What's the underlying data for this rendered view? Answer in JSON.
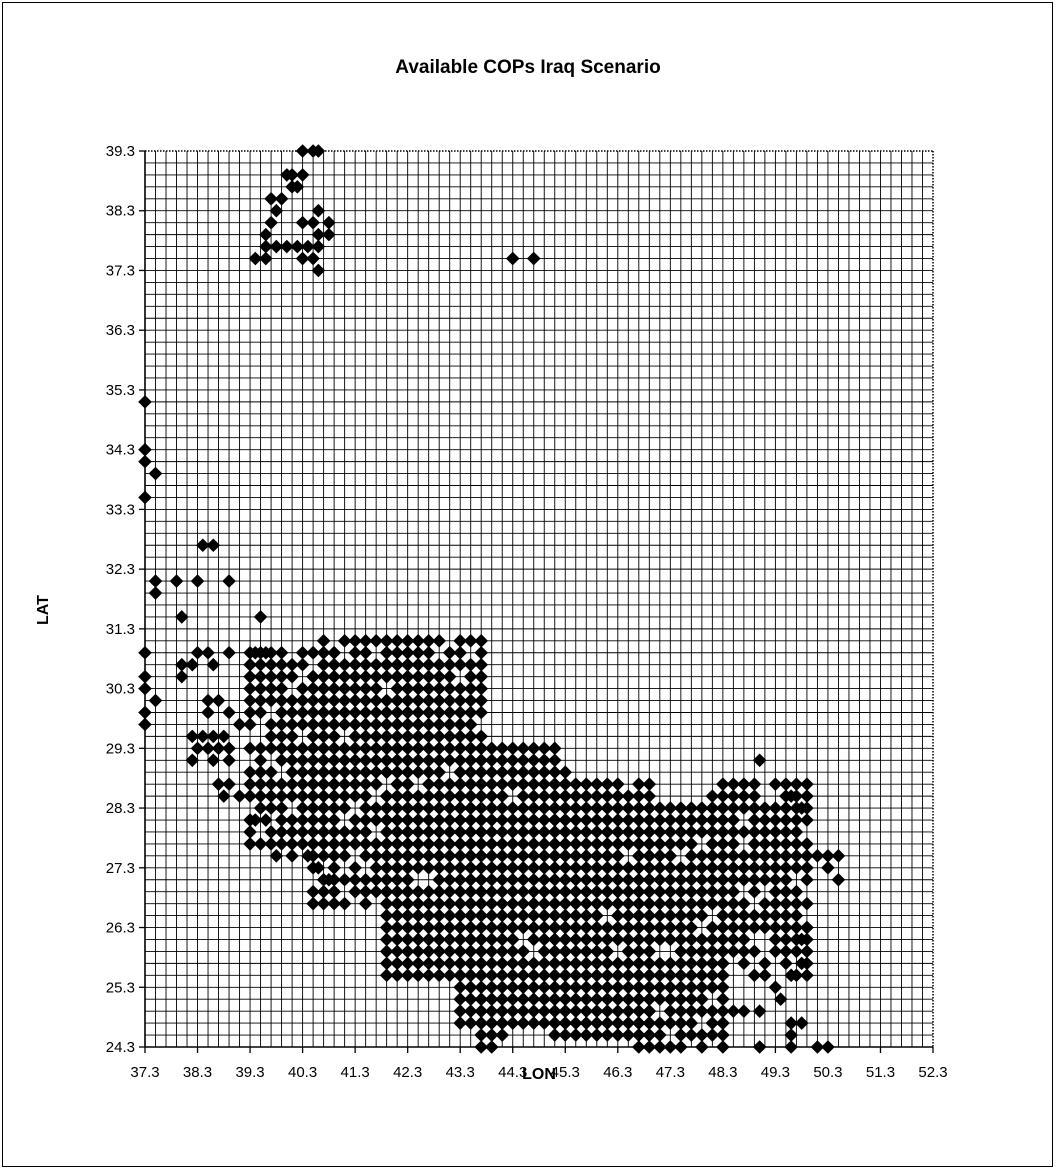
{
  "chart_data": {
    "type": "scatter",
    "title": "Available COPs Iraq Scenario",
    "xlabel": "LON",
    "ylabel": "LAT",
    "xlim": [
      37.3,
      52.3
    ],
    "ylim": [
      24.3,
      39.3
    ],
    "x_ticks": [
      "37.3",
      "38.3",
      "39.3",
      "40.3",
      "41.3",
      "42.3",
      "43.3",
      "44.3",
      "45.3",
      "46.3",
      "47.3",
      "48.3",
      "49.3",
      "50.3",
      "51.3",
      "52.3"
    ],
    "y_ticks": [
      "39.3",
      "38.3",
      "37.3",
      "36.3",
      "35.3",
      "34.3",
      "33.3",
      "32.3",
      "31.3",
      "30.3",
      "29.3",
      "28.3",
      "27.3",
      "26.3",
      "25.3",
      "24.3"
    ],
    "grid": true,
    "legend": "none",
    "marker_color": "#000000",
    "marker": "diamond",
    "points": [
      [
        40.3,
        39.3
      ],
      [
        40.5,
        39.3
      ],
      [
        40.6,
        39.3
      ],
      [
        40.0,
        38.9
      ],
      [
        40.1,
        38.9
      ],
      [
        40.3,
        38.9
      ],
      [
        40.1,
        38.7
      ],
      [
        40.2,
        38.7
      ],
      [
        39.7,
        38.5
      ],
      [
        39.9,
        38.5
      ],
      [
        39.8,
        38.3
      ],
      [
        40.6,
        38.3
      ],
      [
        39.7,
        38.1
      ],
      [
        40.3,
        38.1
      ],
      [
        40.5,
        38.1
      ],
      [
        40.8,
        38.1
      ],
      [
        39.6,
        37.9
      ],
      [
        40.6,
        37.9
      ],
      [
        40.8,
        37.9
      ],
      [
        39.6,
        37.7
      ],
      [
        39.8,
        37.7
      ],
      [
        40.0,
        37.7
      ],
      [
        40.2,
        37.7
      ],
      [
        40.4,
        37.7
      ],
      [
        40.6,
        37.7
      ],
      [
        39.4,
        37.5
      ],
      [
        39.6,
        37.5
      ],
      [
        40.3,
        37.5
      ],
      [
        40.5,
        37.5
      ],
      [
        40.6,
        37.3
      ],
      [
        44.3,
        37.5
      ],
      [
        44.7,
        37.5
      ],
      [
        37.3,
        35.1
      ],
      [
        37.3,
        34.3
      ],
      [
        37.3,
        34.1
      ],
      [
        37.5,
        33.9
      ],
      [
        37.3,
        33.5
      ],
      [
        38.4,
        32.7
      ],
      [
        38.6,
        32.7
      ],
      [
        37.5,
        32.1
      ],
      [
        37.9,
        32.1
      ],
      [
        38.3,
        32.1
      ],
      [
        38.9,
        32.1
      ],
      [
        37.5,
        31.9
      ],
      [
        38.0,
        31.5
      ],
      [
        39.5,
        31.5
      ],
      [
        37.3,
        30.9
      ],
      [
        38.3,
        30.9
      ],
      [
        38.5,
        30.9
      ],
      [
        38.9,
        30.9
      ],
      [
        39.4,
        30.9
      ],
      [
        39.6,
        30.9
      ],
      [
        37.3,
        30.5
      ],
      [
        37.3,
        30.3
      ],
      [
        37.5,
        30.1
      ],
      [
        37.3,
        29.9
      ],
      [
        37.3,
        29.7
      ],
      [
        38.0,
        30.5
      ],
      [
        38.0,
        30.7
      ],
      [
        38.2,
        30.7
      ],
      [
        38.6,
        30.7
      ],
      [
        38.5,
        30.1
      ],
      [
        38.7,
        30.1
      ],
      [
        38.5,
        29.9
      ],
      [
        38.9,
        29.9
      ],
      [
        39.1,
        29.7
      ],
      [
        38.2,
        29.5
      ],
      [
        38.4,
        29.5
      ],
      [
        38.6,
        29.5
      ],
      [
        38.8,
        29.5
      ],
      [
        38.3,
        29.3
      ],
      [
        38.5,
        29.3
      ],
      [
        38.7,
        29.3
      ],
      [
        38.9,
        29.3
      ],
      [
        38.2,
        29.1
      ],
      [
        38.6,
        29.1
      ],
      [
        38.9,
        29.1
      ],
      [
        38.7,
        28.7
      ],
      [
        38.9,
        28.7
      ],
      [
        38.8,
        28.5
      ],
      [
        39.1,
        28.5
      ],
      [
        39.4,
        28.1
      ],
      [
        39.6,
        28.1
      ],
      [
        39.8,
        27.5
      ],
      [
        40.1,
        27.5
      ],
      [
        40.4,
        27.5
      ],
      [
        40.6,
        27.3
      ],
      [
        40.8,
        27.1
      ],
      [
        40.9,
        26.9
      ],
      [
        49.0,
        29.1
      ],
      [
        49.6,
        28.5
      ],
      [
        49.8,
        28.3
      ],
      [
        50.1,
        27.5
      ],
      [
        50.3,
        27.5
      ],
      [
        50.5,
        27.5
      ],
      [
        50.3,
        27.3
      ],
      [
        50.5,
        27.1
      ],
      [
        49.9,
        26.3
      ],
      [
        49.8,
        26.1
      ],
      [
        49.8,
        25.7
      ],
      [
        49.6,
        25.5
      ],
      [
        49.3,
        25.3
      ],
      [
        49.4,
        25.1
      ],
      [
        49.0,
        24.9
      ],
      [
        49.6,
        24.7
      ],
      [
        49.8,
        24.7
      ],
      [
        49.6,
        24.5
      ],
      [
        49.0,
        24.3
      ],
      [
        49.6,
        24.3
      ],
      [
        50.1,
        24.3
      ],
      [
        50.3,
        24.3
      ],
      [
        48.1,
        24.9
      ],
      [
        48.5,
        24.9
      ],
      [
        48.7,
        24.9
      ],
      [
        48.3,
        24.7
      ]
    ],
    "regions": [
      {
        "x": [
          39.3,
          40.9
        ],
        "y": [
          27.7,
          30.9
        ],
        "density": 0.82
      },
      {
        "x": [
          40.5,
          42.3
        ],
        "y": [
          26.7,
          31.1
        ],
        "density": 0.85
      },
      {
        "x": [
          41.9,
          43.7
        ],
        "y": [
          25.5,
          31.1
        ],
        "density": 0.92
      },
      {
        "x": [
          43.3,
          45.3
        ],
        "y": [
          24.7,
          29.3
        ],
        "density": 0.95
      },
      {
        "x": [
          45.1,
          46.9
        ],
        "y": [
          24.5,
          28.7
        ],
        "density": 0.95
      },
      {
        "x": [
          46.7,
          48.3
        ],
        "y": [
          24.3,
          28.3
        ],
        "density": 0.9
      },
      {
        "x": [
          48.1,
          49.9
        ],
        "y": [
          25.5,
          28.7
        ],
        "density": 0.8
      },
      {
        "x": [
          43.7,
          44.1
        ],
        "y": [
          24.3,
          25.1
        ],
        "density": 0.9
      }
    ]
  }
}
